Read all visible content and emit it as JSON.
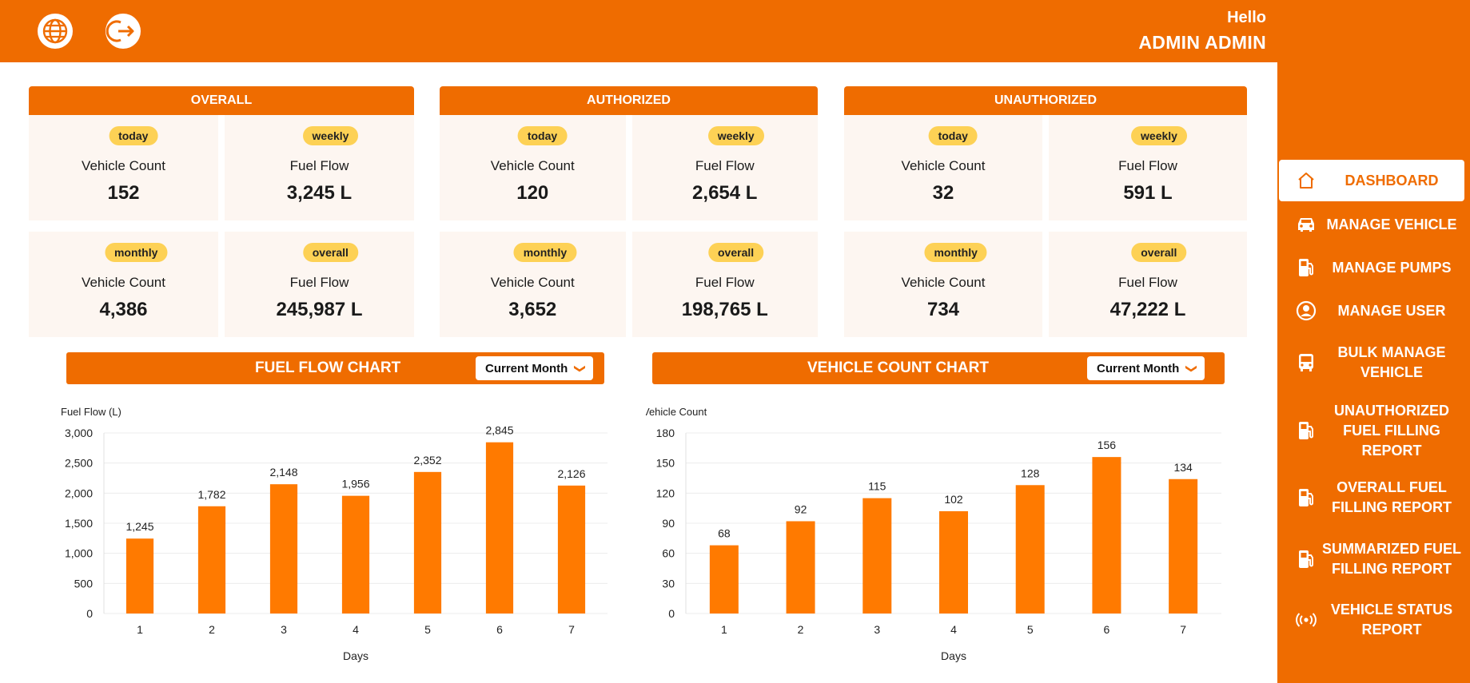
{
  "header": {
    "greeting": "Hello",
    "user_name": "ADMIN ADMIN"
  },
  "icons": {
    "language": "globe-icon",
    "logout": "logout-icon"
  },
  "colors": {
    "accent": "#ef6c00",
    "pill": "#fdd155",
    "card_bg": "#fdf6f1",
    "bar": "#ff7a00"
  },
  "groups": [
    {
      "title": "OVERALL",
      "cards": [
        {
          "period": "today",
          "label": "Vehicle Count",
          "value": "152"
        },
        {
          "period": "weekly",
          "label": "Fuel Flow",
          "value": "3,245 L"
        },
        {
          "period": "monthly",
          "label": "Vehicle Count",
          "value": "4,386"
        },
        {
          "period": "overall",
          "label": "Fuel Flow",
          "value": "245,987 L"
        }
      ]
    },
    {
      "title": "AUTHORIZED",
      "cards": [
        {
          "period": "today",
          "label": "Vehicle Count",
          "value": "120"
        },
        {
          "period": "weekly",
          "label": "Fuel Flow",
          "value": "2,654 L"
        },
        {
          "period": "monthly",
          "label": "Vehicle Count",
          "value": "3,652"
        },
        {
          "period": "overall",
          "label": "Fuel Flow",
          "value": "198,765 L"
        }
      ]
    },
    {
      "title": "UNAUTHORIZED",
      "cards": [
        {
          "period": "today",
          "label": "Vehicle Count",
          "value": "32"
        },
        {
          "period": "weekly",
          "label": "Fuel Flow",
          "value": "591 L"
        },
        {
          "period": "monthly",
          "label": "Vehicle Count",
          "value": "734"
        },
        {
          "period": "overall",
          "label": "Fuel Flow",
          "value": "47,222 L"
        }
      ]
    }
  ],
  "sidebar": {
    "items": [
      {
        "label": "DASHBOARD",
        "icon": "home-icon",
        "active": true
      },
      {
        "label": "MANAGE VEHICLE",
        "icon": "car-icon",
        "active": false
      },
      {
        "label": "MANAGE PUMPS",
        "icon": "fuel-pump-icon",
        "active": false
      },
      {
        "label": "MANAGE USER",
        "icon": "user-circle-icon",
        "active": false
      },
      {
        "label": "BULK MANAGE VEHICLE",
        "icon": "bus-icon",
        "active": false
      },
      {
        "label": "UNAUTHORIZED FUEL FILLING REPORT",
        "icon": "fuel-pump-icon",
        "active": false
      },
      {
        "label": "OVERALL FUEL FILLING REPORT",
        "icon": "fuel-pump-icon",
        "active": false
      },
      {
        "label": "SUMMARIZED FUEL FILLING REPORT",
        "icon": "fuel-pump-icon",
        "active": false
      },
      {
        "label": "VEHICLE STATUS REPORT",
        "icon": "broadcast-icon",
        "active": false
      }
    ]
  },
  "charts": [
    {
      "header_title": "FUEL FLOW CHART",
      "filter_value": "Current Month"
    },
    {
      "header_title": "VEHICLE COUNT CHART",
      "filter_value": "Current Month"
    }
  ],
  "chart_data": [
    {
      "type": "bar",
      "title": "",
      "xlabel": "Days",
      "ylabel": "Fuel Flow (L)",
      "categories": [
        "1",
        "2",
        "3",
        "4",
        "5",
        "6",
        "7"
      ],
      "values": [
        1245,
        1782,
        2148,
        1956,
        2352,
        2845,
        2126
      ],
      "value_labels": [
        "1,245",
        "1,782",
        "2,148",
        "1,956",
        "2,352",
        "2,845",
        "2,126"
      ],
      "ylim": [
        0,
        3000
      ],
      "yticks": [
        0,
        500,
        1000,
        1500,
        2000,
        2500,
        3000
      ],
      "ytick_labels": [
        "0",
        "500",
        "1,000",
        "1,500",
        "2,000",
        "2,500",
        "3,000"
      ],
      "grid": true,
      "legend": "none"
    },
    {
      "type": "bar",
      "title": "",
      "xlabel": "Days",
      "ylabel": "Vehicle Count",
      "categories": [
        "1",
        "2",
        "3",
        "4",
        "5",
        "6",
        "7"
      ],
      "values": [
        68,
        92,
        115,
        102,
        128,
        156,
        134
      ],
      "value_labels": [
        "68",
        "92",
        "115",
        "102",
        "128",
        "156",
        "134"
      ],
      "ylim": [
        0,
        180
      ],
      "yticks": [
        0,
        30,
        60,
        90,
        120,
        150,
        180
      ],
      "ytick_labels": [
        "0",
        "30",
        "60",
        "90",
        "120",
        "150",
        "180"
      ],
      "grid": true,
      "legend": "none"
    }
  ]
}
